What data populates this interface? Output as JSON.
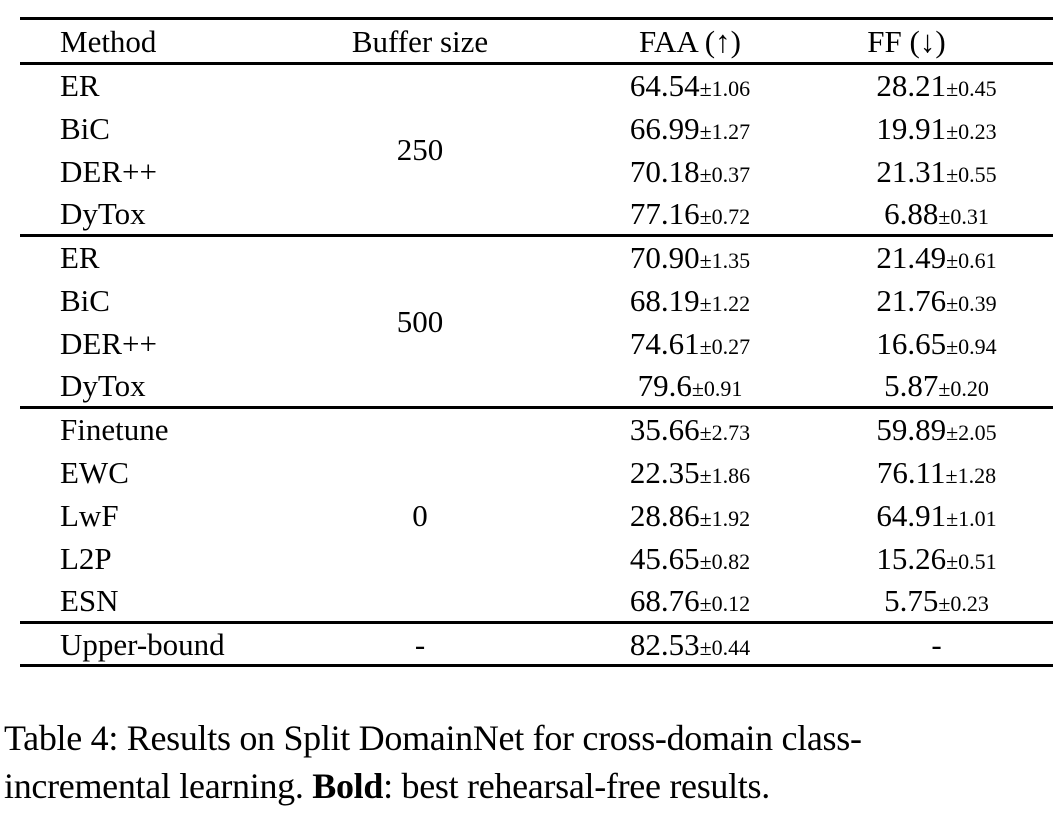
{
  "table": {
    "headers": [
      "Method",
      "Buffer size",
      "FAA (↑)",
      "FF (↓)"
    ],
    "blocks": [
      {
        "buffer": "250",
        "rows": [
          {
            "method": "ER",
            "faa": "64.54",
            "faa_pm": "±1.06",
            "ff": "28.21",
            "ff_pm": "±0.45",
            "bold": false
          },
          {
            "method": "BiC",
            "faa": "66.99",
            "faa_pm": "±1.27",
            "ff": "19.91",
            "ff_pm": "±0.23",
            "bold": false
          },
          {
            "method": "DER++",
            "faa": "70.18",
            "faa_pm": "±0.37",
            "ff": "21.31",
            "ff_pm": "±0.55",
            "bold": false
          },
          {
            "method": "DyTox",
            "faa": "77.16",
            "faa_pm": "±0.72",
            "ff": "6.88",
            "ff_pm": "±0.31",
            "bold": false
          }
        ]
      },
      {
        "buffer": "500",
        "rows": [
          {
            "method": "ER",
            "faa": "70.90",
            "faa_pm": "±1.35",
            "ff": "21.49",
            "ff_pm": "±0.61",
            "bold": false
          },
          {
            "method": "BiC",
            "faa": "68.19",
            "faa_pm": "±1.22",
            "ff": "21.76",
            "ff_pm": "±0.39",
            "bold": false
          },
          {
            "method": "DER++",
            "faa": "74.61",
            "faa_pm": "±0.27",
            "ff": "16.65",
            "ff_pm": "±0.94",
            "bold": false
          },
          {
            "method": "DyTox",
            "faa": "79.6",
            "faa_pm": "±0.91",
            "ff": "5.87",
            "ff_pm": "±0.20",
            "bold": false
          }
        ]
      },
      {
        "buffer": "0",
        "rows": [
          {
            "method": "Finetune",
            "faa": "35.66",
            "faa_pm": "±2.73",
            "ff": "59.89",
            "ff_pm": "±2.05",
            "bold": false
          },
          {
            "method": "EWC",
            "faa": "22.35",
            "faa_pm": "±1.86",
            "ff": "76.11",
            "ff_pm": "±1.28",
            "bold": false
          },
          {
            "method": "LwF",
            "faa": "28.86",
            "faa_pm": "±1.92",
            "ff": "64.91",
            "ff_pm": "±1.01",
            "bold": false
          },
          {
            "method": "L2P",
            "faa": "45.65",
            "faa_pm": "±0.82",
            "ff": "15.26",
            "ff_pm": "±0.51",
            "bold": false
          },
          {
            "method": "ESN",
            "faa": "68.76",
            "faa_pm": "±0.12",
            "ff": "5.75",
            "ff_pm": "±0.23",
            "bold": true
          }
        ]
      },
      {
        "buffer": "-",
        "rows": [
          {
            "method": "Upper-bound",
            "faa": "82.53",
            "faa_pm": "±0.44",
            "ff": "-",
            "ff_pm": "",
            "bold": false
          }
        ]
      }
    ]
  },
  "caption": {
    "line1": "Table 4: Results on Split DomainNet for cross-domain class-",
    "line2_before_bold": "incremental learning. ",
    "line2_bold": "Bold",
    "line2_after_bold": ": best rehearsal-free results."
  }
}
